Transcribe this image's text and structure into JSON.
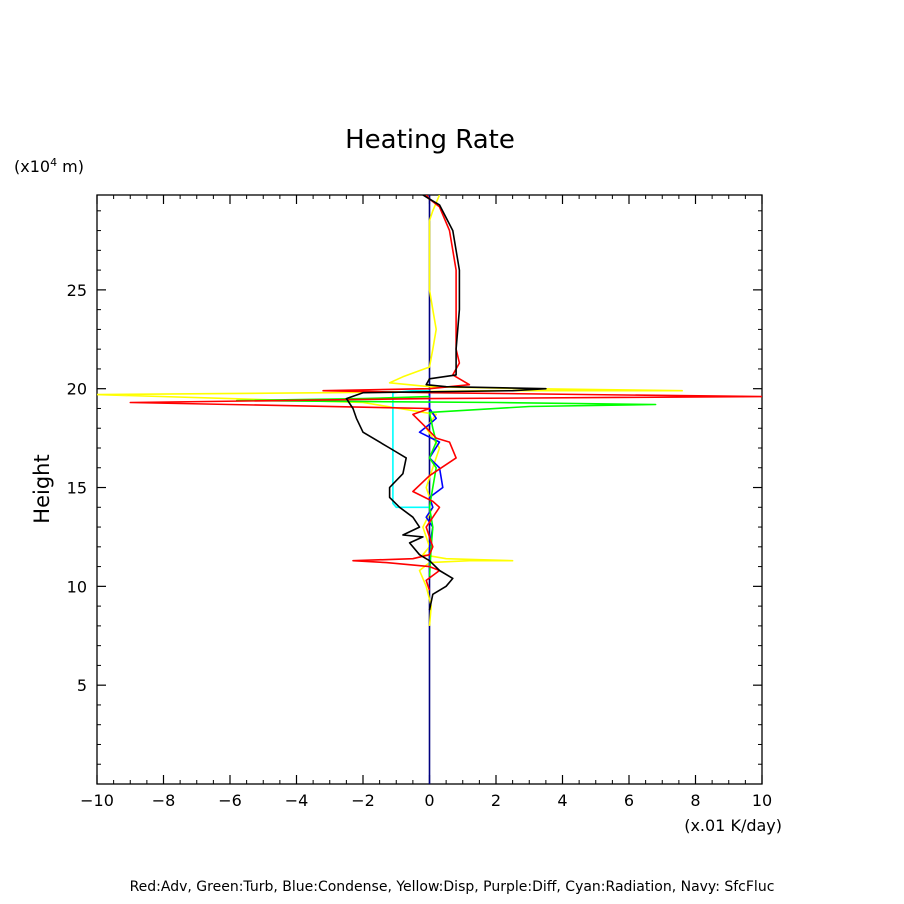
{
  "chart_data": {
    "type": "line",
    "title": "Heating Rate",
    "xlabel": "(x.01 K/day)",
    "ylabel": "Height",
    "yunit_prefix": "(x10",
    "yunit_exp": "4",
    "yunit_suffix": " m)",
    "legend_text": "Red:Adv, Green:Turb, Blue:Condense, Yellow:Disp, Purple:Diff, Cyan:Radiation, Navy: SfcFluc",
    "xlim": [
      -10,
      10
    ],
    "ylim": [
      0,
      29.8
    ],
    "xticks": [
      -10,
      -8,
      -6,
      -4,
      -2,
      0,
      2,
      4,
      6,
      8,
      10
    ],
    "xtick_labels": [
      "−10",
      "−8",
      "−6",
      "−4",
      "−2",
      "0",
      "2",
      "4",
      "6",
      "8",
      "10"
    ],
    "yticks": [
      5,
      10,
      15,
      20,
      25
    ],
    "ytick_labels": [
      "5",
      "10",
      "15",
      "20",
      "25"
    ],
    "grid": false,
    "series": [
      {
        "name": "SfcFluc",
        "color": "#000080",
        "points": [
          [
            0,
            0
          ],
          [
            0,
            29.8
          ]
        ]
      },
      {
        "name": "Disp",
        "color": "#ffff00",
        "points": [
          [
            0,
            8.0
          ],
          [
            0.05,
            9
          ],
          [
            -0.1,
            10
          ],
          [
            -0.3,
            10.8
          ],
          [
            0,
            11.2
          ],
          [
            1.2,
            11.3
          ],
          [
            2.5,
            11.3
          ],
          [
            0.5,
            11.4
          ],
          [
            -0.2,
            11.6
          ],
          [
            0,
            12
          ],
          [
            -0.2,
            13
          ],
          [
            0.1,
            14
          ],
          [
            -0.1,
            15
          ],
          [
            0.1,
            16
          ],
          [
            0.3,
            17
          ],
          [
            -0.1,
            18
          ],
          [
            0.2,
            18.7
          ],
          [
            -2,
            19.3
          ],
          [
            -6,
            19.5
          ],
          [
            -10,
            19.7
          ],
          [
            -3,
            19.8
          ],
          [
            2,
            19.9
          ],
          [
            7.6,
            19.9
          ],
          [
            3,
            20.0
          ],
          [
            0,
            20.1
          ],
          [
            -1.2,
            20.3
          ],
          [
            -0.8,
            20.6
          ],
          [
            0,
            21.1
          ],
          [
            0.1,
            22
          ],
          [
            0.2,
            23
          ],
          [
            0.1,
            24
          ],
          [
            0,
            25
          ],
          [
            0,
            27
          ],
          [
            0,
            28.5
          ],
          [
            0.1,
            29
          ],
          [
            0.3,
            29.8
          ]
        ]
      },
      {
        "name": "Condense",
        "color": "#0000ff",
        "points": [
          [
            0,
            10.5
          ],
          [
            0,
            12
          ],
          [
            0.1,
            13
          ],
          [
            -0.1,
            13.5
          ],
          [
            0.1,
            14
          ],
          [
            0,
            14.5
          ],
          [
            0.4,
            15
          ],
          [
            0.3,
            16
          ],
          [
            0,
            16.5
          ],
          [
            0.3,
            17.3
          ],
          [
            -0.3,
            17.8
          ],
          [
            0,
            18.2
          ],
          [
            0.2,
            18.5
          ],
          [
            0,
            19
          ],
          [
            0,
            20
          ]
        ]
      },
      {
        "name": "Radiation",
        "color": "#00ffff",
        "points": [
          [
            0,
            14
          ],
          [
            -1,
            14
          ],
          [
            -1.1,
            14.2
          ],
          [
            -1.1,
            16
          ],
          [
            -1.1,
            18
          ],
          [
            -1.1,
            19.8
          ],
          [
            -0.5,
            19.9
          ],
          [
            0,
            19.9
          ]
        ]
      },
      {
        "name": "Turb",
        "color": "#00ff00",
        "points": [
          [
            0,
            10.5
          ],
          [
            0.05,
            12
          ],
          [
            0.1,
            13
          ],
          [
            0,
            14
          ],
          [
            0.1,
            15
          ],
          [
            0.2,
            16
          ],
          [
            0,
            16.5
          ],
          [
            0.2,
            17.3
          ],
          [
            0.1,
            18
          ],
          [
            0,
            18.8
          ],
          [
            3,
            19.1
          ],
          [
            6.8,
            19.2
          ],
          [
            2,
            19.3
          ],
          [
            -5.8,
            19.4
          ],
          [
            -2,
            19.5
          ],
          [
            0,
            19.6
          ]
        ]
      },
      {
        "name": "Adv",
        "color": "#ff0000",
        "points": [
          [
            0,
            9.8
          ],
          [
            -0.1,
            10.3
          ],
          [
            0.3,
            10.8
          ],
          [
            0,
            11
          ],
          [
            -1.3,
            11.2
          ],
          [
            -2.3,
            11.3
          ],
          [
            -0.5,
            11.4
          ],
          [
            0,
            11.6
          ],
          [
            0.1,
            12
          ],
          [
            -0.1,
            13
          ],
          [
            0.3,
            14
          ],
          [
            0.1,
            14.3
          ],
          [
            -0.5,
            14.8
          ],
          [
            0,
            15.6
          ],
          [
            0.8,
            16.5
          ],
          [
            0.6,
            17.3
          ],
          [
            0.2,
            17.5
          ],
          [
            -0.2,
            18.2
          ],
          [
            -0.5,
            18.7
          ],
          [
            0,
            19
          ],
          [
            -9,
            19.3
          ],
          [
            0,
            19.5
          ],
          [
            10,
            19.6
          ],
          [
            0,
            19.8
          ],
          [
            -3.2,
            19.9
          ],
          [
            0,
            20
          ],
          [
            1.2,
            20.2
          ],
          [
            0.7,
            20.7
          ],
          [
            0.9,
            21.3
          ],
          [
            0.8,
            22
          ],
          [
            0.8,
            24
          ],
          [
            0.8,
            26
          ],
          [
            0.6,
            28
          ],
          [
            0.3,
            29.2
          ],
          [
            0,
            29.6
          ],
          [
            -0.1,
            29.8
          ]
        ]
      },
      {
        "name": "Black",
        "color": "#000000",
        "points": [
          [
            0,
            8.8
          ],
          [
            0.1,
            9.6
          ],
          [
            0.5,
            10.0
          ],
          [
            0.7,
            10.4
          ],
          [
            0.3,
            10.8
          ],
          [
            0,
            11.3
          ],
          [
            -0.3,
            11.6
          ],
          [
            -0.6,
            12.2
          ],
          [
            -0.2,
            12.5
          ],
          [
            -0.8,
            12.6
          ],
          [
            -0.3,
            13
          ],
          [
            -0.5,
            13.5
          ],
          [
            -0.9,
            14
          ],
          [
            -1.2,
            14.5
          ],
          [
            -1.2,
            15
          ],
          [
            -0.8,
            15.7
          ],
          [
            -0.7,
            16.5
          ],
          [
            -1.2,
            17
          ],
          [
            -2.0,
            17.8
          ],
          [
            -2.2,
            18.5
          ],
          [
            -2.3,
            19.0
          ],
          [
            -2.5,
            19.5
          ],
          [
            -2.0,
            19.8
          ],
          [
            2.5,
            19.9
          ],
          [
            3.5,
            20.0
          ],
          [
            0.5,
            20.1
          ],
          [
            -0.1,
            20.2
          ],
          [
            0,
            20.5
          ],
          [
            0.8,
            20.7
          ],
          [
            0.8,
            22
          ],
          [
            0.9,
            24
          ],
          [
            0.9,
            26
          ],
          [
            0.7,
            28
          ],
          [
            0.3,
            29.3
          ],
          [
            0,
            29.6
          ],
          [
            -0.2,
            29.8
          ]
        ]
      }
    ]
  }
}
